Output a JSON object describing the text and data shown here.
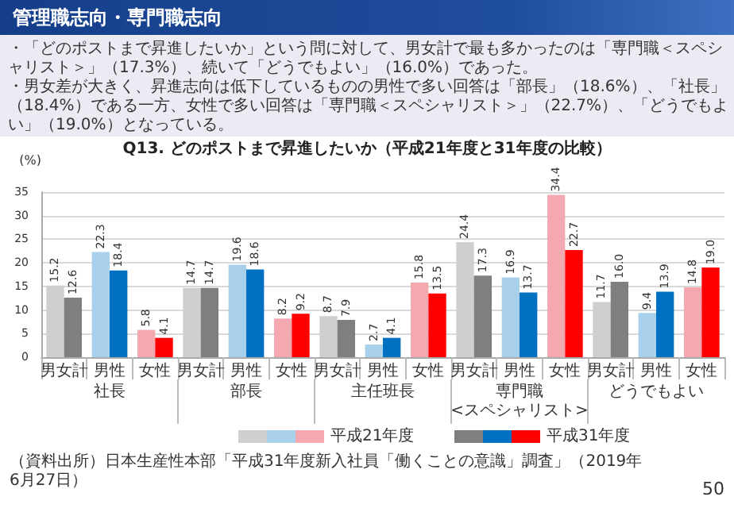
{
  "chart_data": {
    "type": "bar",
    "title": "管理職志向・専門職志向",
    "subtitle": "・「どのポストまで昇進したいか」という問に対して、男女計で最も多かったのは「専門職＜スペシャリスト＞」（17.3%）、続いて「どうでもよい」（16.0%）であった。",
    "ylabel": "(%)",
    "categories": [
      "男女計",
      "男性",
      "女性",
      "男女計",
      "男性",
      "女性",
      "男女計",
      "男性",
      "女性",
      "男女計",
      "男性",
      "女性",
      "男女計",
      "男性",
      "女性"
    ],
    "series": [
      {
        "name": "平成21年度",
        "values": [
          15.2,
          22.3,
          5.8,
          14.7,
          19.6,
          8.2,
          8.7,
          2.7,
          15.8,
          24.4,
          16.9,
          34.4,
          11.7,
          9.4,
          14.8
        ],
        "value_labels": [
          "15.2",
          "22.3",
          "5.8",
          "14.7",
          "19.6",
          "8.2",
          "8.7",
          "2.7",
          "15.8",
          "24.4",
          "16.9",
          "34.4",
          "11.7",
          "9.4",
          "14.8"
        ],
        "colors": [
          "#cfcfcf",
          "#a9d0ea",
          "#f4a9b0",
          "#cfcfcf",
          "#a9d0ea",
          "#f4a9b0",
          "#cfcfcf",
          "#a9d0ea",
          "#f4a9b0",
          "#cfcfcf",
          "#a9d0ea",
          "#f4a9b0",
          "#cfcfcf",
          "#a9d0ea",
          "#f4a9b0"
        ]
      },
      {
        "name": "平成31年度",
        "values": [
          12.6,
          18.4,
          4.1,
          14.7,
          18.6,
          9.2,
          7.9,
          4.1,
          13.5,
          17.3,
          13.7,
          22.7,
          16.0,
          13.9,
          19.0
        ],
        "value_labels": [
          "12.6",
          "18.4",
          "4.1",
          "14.7",
          "18.6",
          "9.2",
          "7.9",
          "4.1",
          "13.5",
          "17.3",
          "13.7",
          "22.7",
          "16.0",
          "13.9",
          "19.0"
        ],
        "colors": [
          "#7f7f7f",
          "#0070c0",
          "#ff0000",
          "#7f7f7f",
          "#0070c0",
          "#ff0000",
          "#7f7f7f",
          "#0070c0",
          "#ff0000",
          "#7f7f7f",
          "#0070c0",
          "#ff0000",
          "#7f7f7f",
          "#0070c0",
          "#ff0000"
        ]
      }
    ],
    "ylim": [
      0,
      35
    ],
    "yticks": [
      0,
      5,
      10,
      15,
      20,
      25,
      30,
      35
    ],
    "grid": "y",
    "legend": "bottom",
    "annotations": [
      "・男女差が大きく、昇進志向は低下しているものの男性で多い回答は「部長」（18.6%）、「社長」（18.4%）である一方、女性で多い回答は「専門職＜スペシャリスト＞」（22.7%）、「どうでもよい」（19.0%）となっている。",
      "Q13. どのポストまで昇進したいか（平成21年度と31年度の比較）",
      "社長",
      "部長",
      "主任班長",
      "専門職\n<スペシャリスト>",
      "どうでもよい",
      "（資料出所）日本生産性本部「平成31年度新入社員「働くことの意識」調査」（2019年6月27日）",
      "50"
    ]
  }
}
